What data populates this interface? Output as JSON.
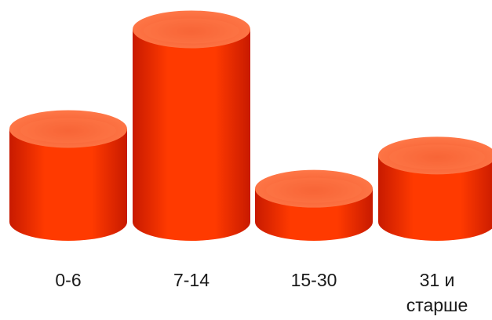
{
  "chart_data": {
    "type": "bar",
    "style": "3d-cylinder",
    "categories": [
      "0-6",
      "7-14",
      "15-30",
      "31 и старше"
    ],
    "category_label_lines": [
      [
        "0-6"
      ],
      [
        "7-14"
      ],
      [
        "15-30"
      ],
      [
        "31 и",
        "старше"
      ]
    ],
    "values": [
      2.8,
      5.8,
      1.0,
      2.0
    ],
    "ylim": [
      0,
      6
    ],
    "grid": false,
    "legend": "none",
    "axes_visible": false,
    "colors": {
      "bar": "#ff3a00",
      "bar_dark": "#c81a00",
      "bar_light": "#ff7a4a",
      "top": "#f4592c"
    }
  }
}
